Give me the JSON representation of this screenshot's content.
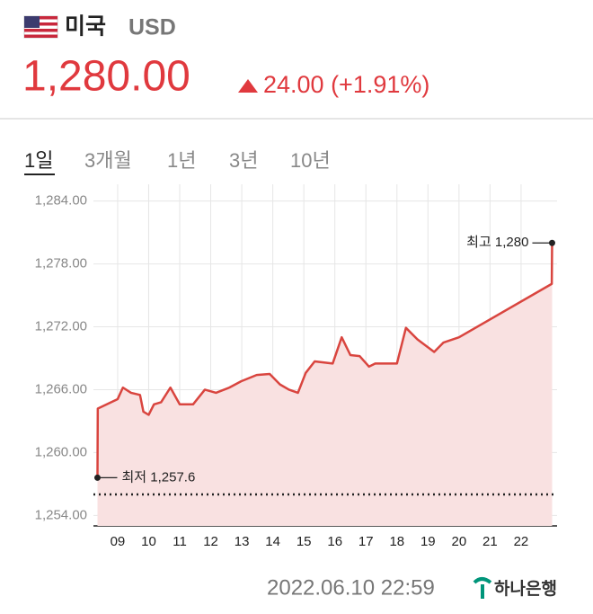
{
  "header": {
    "country": "미국",
    "currency": "USD",
    "price": "1,280.00",
    "change": "24.00 (+1.91%)"
  },
  "tabs": [
    "1일",
    "3개월",
    "1년",
    "3년",
    "10년"
  ],
  "footer": {
    "timestamp": "2022.06.10 22:59",
    "bank": "하나은행"
  },
  "chart_data": {
    "type": "line",
    "x": [
      8.35,
      8.36,
      9.0,
      9.17,
      9.43,
      9.72,
      9.83,
      10.0,
      10.17,
      10.4,
      10.7,
      11.0,
      11.43,
      11.81,
      12.17,
      12.6,
      12.98,
      13.48,
      13.9,
      14.23,
      14.52,
      14.81,
      15.06,
      15.35,
      15.93,
      16.22,
      16.5,
      16.8,
      17.1,
      17.3,
      18.0,
      18.29,
      18.66,
      19.2,
      19.5,
      20.0,
      22.99,
      23.0
    ],
    "series": [
      {
        "color": "#d9453f",
        "fill": "#f9e1e1",
        "values": [
          1257.6,
          1264.2,
          1265.1,
          1266.2,
          1265.7,
          1265.5,
          1263.9,
          1263.6,
          1264.6,
          1264.8,
          1266.2,
          1264.6,
          1264.6,
          1266.0,
          1265.7,
          1266.2,
          1266.8,
          1267.4,
          1267.5,
          1266.5,
          1266.0,
          1265.7,
          1267.6,
          1268.7,
          1268.5,
          1271.0,
          1269.3,
          1269.2,
          1268.2,
          1268.5,
          1268.5,
          1271.9,
          1270.8,
          1269.6,
          1270.5,
          1271.0,
          1276.1,
          1280.0
        ]
      }
    ],
    "xlim": [
      8.22,
      23.16
    ],
    "xticks": [
      {
        "value": 9,
        "label": "09"
      },
      10,
      11,
      12,
      13,
      14,
      15,
      16,
      17,
      18,
      19,
      20,
      21,
      22
    ],
    "ylim": [
      1253,
      1285.6
    ],
    "yticks": [
      {
        "value": 1254,
        "label": "1,254.00"
      },
      {
        "value": 1260,
        "label": "1,260.00"
      },
      {
        "value": 1266,
        "label": "1,266.00"
      },
      {
        "value": 1272,
        "label": "1,272.00"
      },
      {
        "value": 1278,
        "label": "1,278.00"
      },
      {
        "value": 1284,
        "label": "1,284.00"
      }
    ],
    "grid": true,
    "reference_line": 1256,
    "annotations": [
      {
        "text": "최고 1,280",
        "x": 23.0,
        "y": 1280
      },
      {
        "text": "최저 1,257.6",
        "x": 8.35,
        "y": 1257.6
      }
    ]
  }
}
